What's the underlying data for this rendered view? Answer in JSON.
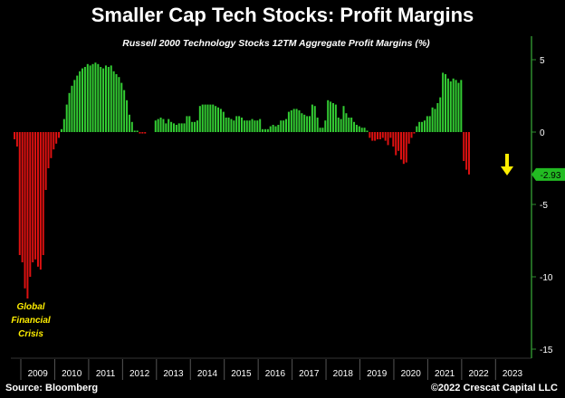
{
  "title": "Smaller Cap Tech Stocks: Profit Margins",
  "footer": {
    "source": "Source: Bloomberg",
    "copyright": "©2022 Crescat Capital LLC"
  },
  "annotation_lines": [
    "Global",
    "Financial",
    "Crisis"
  ],
  "colors": {
    "positive": "#33cc33",
    "negative": "#dd1111",
    "axis": "#2e8b2e",
    "annotation": "#ffee00",
    "last_value_badge": "#22bb22",
    "arrow": "#ffee00"
  },
  "chart_data": {
    "type": "bar",
    "title": "Russell 2000 Technology Stocks 12TM Aggregate Profit Margins (%)",
    "ylim": [
      -15,
      6
    ],
    "yticks": [
      5,
      0,
      -5,
      -10,
      -15
    ],
    "year_labels": [
      "2009",
      "2010",
      "2011",
      "2012",
      "2013",
      "2014",
      "2015",
      "2016",
      "2017",
      "2018",
      "2019",
      "2020",
      "2021",
      "2022",
      "2023"
    ],
    "last_value_label": "-2.93",
    "grid": false,
    "values": [
      -0.5,
      -1.0,
      -8.5,
      -9.0,
      -10.8,
      -11.5,
      -10.0,
      -9.0,
      -8.8,
      -9.3,
      -9.5,
      -8.5,
      -4.0,
      -2.5,
      -1.8,
      -1.2,
      -0.8,
      -0.4,
      0.2,
      0.9,
      1.9,
      2.7,
      3.2,
      3.6,
      3.9,
      4.2,
      4.4,
      4.5,
      4.7,
      4.6,
      4.7,
      4.8,
      4.7,
      4.5,
      4.4,
      4.6,
      4.5,
      4.6,
      4.2,
      4.0,
      3.8,
      3.4,
      2.9,
      2.2,
      1.2,
      0.7,
      0.1,
      0.1,
      -0.1,
      -0.1,
      -0.1,
      0.0,
      0.0,
      0.0,
      0.8,
      0.9,
      1.0,
      0.9,
      0.6,
      0.9,
      0.7,
      0.6,
      0.5,
      0.6,
      0.6,
      0.6,
      1.1,
      1.1,
      0.7,
      0.7,
      0.8,
      1.8,
      1.9,
      1.9,
      1.9,
      1.9,
      1.9,
      1.8,
      1.7,
      1.6,
      1.4,
      1.0,
      1.0,
      0.9,
      0.8,
      1.1,
      1.1,
      1.0,
      0.8,
      0.8,
      0.8,
      0.9,
      0.8,
      0.8,
      0.9,
      0.2,
      0.2,
      0.2,
      0.4,
      0.5,
      0.4,
      0.5,
      0.8,
      0.8,
      0.9,
      1.4,
      1.5,
      1.6,
      1.6,
      1.5,
      1.3,
      1.2,
      1.1,
      1.1,
      1.9,
      1.8,
      1.0,
      0.3,
      0.3,
      0.8,
      2.2,
      2.1,
      2.0,
      1.9,
      1.0,
      0.9,
      1.8,
      1.3,
      1.0,
      1.0,
      0.7,
      0.5,
      0.4,
      0.3,
      0.3,
      0.1,
      -0.4,
      -0.6,
      -0.6,
      -0.5,
      -0.5,
      -0.4,
      -0.6,
      -0.9,
      -0.4,
      -1.0,
      -1.6,
      -1.3,
      -1.9,
      -2.2,
      -2.1,
      -0.8,
      -0.4,
      -0.1,
      0.4,
      0.7,
      0.7,
      0.8,
      1.1,
      1.1,
      1.7,
      1.6,
      2.0,
      2.4,
      4.1,
      4.0,
      3.7,
      3.5,
      3.7,
      3.6,
      3.4,
      3.6,
      -2.0,
      -2.6,
      -2.93
    ]
  }
}
